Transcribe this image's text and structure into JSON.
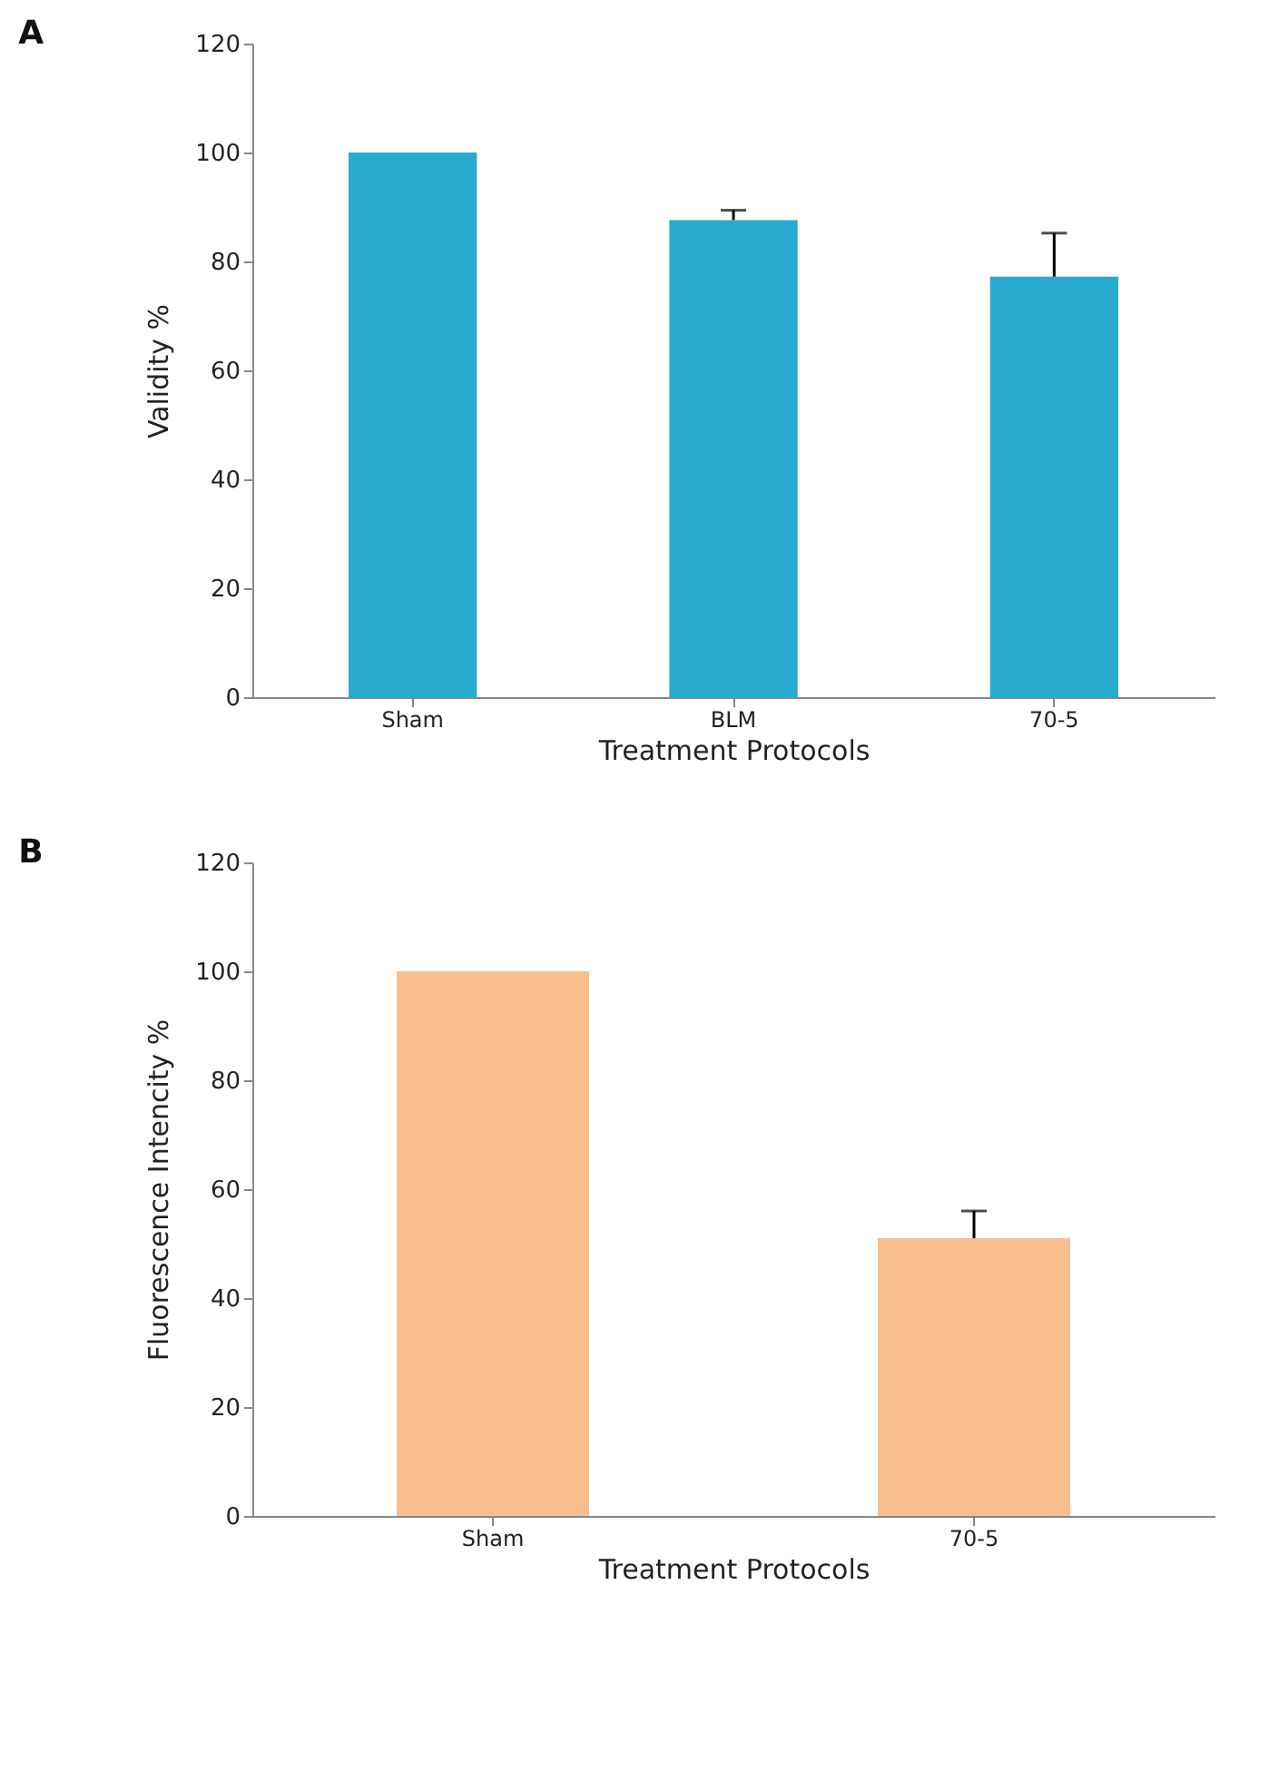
{
  "chart_data": [
    {
      "type": "bar",
      "title": "A",
      "categories": [
        "Sham",
        "BLM",
        "70-5"
      ],
      "values": [
        100,
        87.6,
        77.2
      ],
      "color": "#29abd0",
      "errors": [
        null,
        [
          87.6,
          89.4
        ],
        [
          77.2,
          85.2
        ]
      ],
      "xlabel": "Treatment Protocols",
      "ylabel": "Validity %",
      "ylim": [
        0,
        120
      ],
      "yticks": [
        0,
        20,
        40,
        60,
        80,
        100,
        120
      ],
      "grid": false
    },
    {
      "type": "bar",
      "title": "B",
      "categories": [
        "Sham",
        "70-5"
      ],
      "values": [
        100,
        51
      ],
      "color": "#f8be8c",
      "errors": [
        null,
        [
          51,
          56
        ]
      ],
      "xlabel": "Treatment Protocols",
      "ylabel": "Fluorescence Intencity %",
      "ylim": [
        0,
        120
      ],
      "yticks": [
        0,
        20,
        40,
        60,
        80,
        100,
        120
      ],
      "grid": false
    }
  ]
}
